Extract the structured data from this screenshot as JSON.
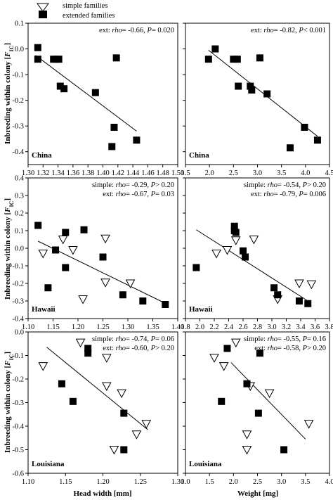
{
  "legend": {
    "simple_label": "simple families",
    "extended_label": "extended families"
  },
  "axis_labels": {
    "ylabel_prefix": "Inbreeding within colony [",
    "ylabel_F": "F",
    "ylabel_sub": "IC",
    "ylabel_suffix": "]",
    "xlabel_left": "Head width [mm]",
    "xlabel_right": "Weight [mg]"
  },
  "chart_data": [
    {
      "type": "scatter",
      "panel_label": "China",
      "xlim": [
        1.3,
        1.5
      ],
      "ylim": [
        -0.45,
        0.1
      ],
      "xticks": [
        "1.30",
        "1.32",
        "1.34",
        "1.36",
        "1.38",
        "1.40",
        "1.42",
        "1.44",
        "1.46",
        "1.48",
        "1.50"
      ],
      "yticks": [
        "0.1",
        "0.0",
        "-0.1",
        "-0.2",
        "-0.3",
        "-0.4"
      ],
      "ytick_values": [
        0.1,
        0.0,
        -0.1,
        -0.2,
        -0.3,
        -0.4
      ],
      "xtick_values": [
        1.3,
        1.32,
        1.34,
        1.36,
        1.38,
        1.4,
        1.42,
        1.44,
        1.46,
        1.48,
        1.5
      ],
      "annotations": [
        {
          "group": "ext:",
          "stat": "rho",
          "value": "= -0.66, ",
          "p": "P",
          "pval": "= 0.020"
        }
      ],
      "series": [
        {
          "name": "extended families",
          "marker": "square",
          "points": [
            [
              1.313,
              0.005
            ],
            [
              1.313,
              -0.04
            ],
            [
              1.334,
              -0.04
            ],
            [
              1.338,
              -0.04
            ],
            [
              1.341,
              -0.04
            ],
            [
              1.343,
              -0.145
            ],
            [
              1.348,
              -0.155
            ],
            [
              1.39,
              -0.17
            ],
            [
              1.415,
              -0.305
            ],
            [
              1.418,
              -0.035
            ],
            [
              1.412,
              -0.38
            ],
            [
              1.445,
              -0.355
            ]
          ]
        }
      ],
      "fit_lines": [
        {
          "from": [
            1.31,
            -0.025
          ],
          "to": [
            1.445,
            -0.32
          ]
        }
      ]
    },
    {
      "type": "scatter",
      "panel_label": "China",
      "xlim": [
        1.5,
        4.5
      ],
      "ylim": [
        -0.45,
        0.1
      ],
      "xticks": [
        "1.5",
        "2.0",
        "2.5",
        "3.0",
        "3.5",
        "4.0",
        "4.5"
      ],
      "xtick_values": [
        1.5,
        2.0,
        2.5,
        3.0,
        3.5,
        4.0,
        4.5
      ],
      "yticks": [],
      "ytick_values": [
        0.1,
        0.0,
        -0.1,
        -0.2,
        -0.3,
        -0.4
      ],
      "annotations": [
        {
          "group": "ext:",
          "stat": "rho",
          "value": "= -0.82, ",
          "p": "P",
          "pval": "< 0.001"
        }
      ],
      "series": [
        {
          "name": "extended families",
          "marker": "square",
          "points": [
            [
              1.98,
              -0.04
            ],
            [
              2.12,
              0.0
            ],
            [
              2.5,
              -0.04
            ],
            [
              2.58,
              -0.04
            ],
            [
              2.6,
              -0.145
            ],
            [
              2.85,
              -0.145
            ],
            [
              2.88,
              -0.16
            ],
            [
              3.05,
              -0.035
            ],
            [
              3.2,
              -0.175
            ],
            [
              3.68,
              -0.385
            ],
            [
              3.98,
              -0.305
            ],
            [
              4.25,
              -0.355
            ]
          ]
        }
      ],
      "fit_lines": [
        {
          "from": [
            1.98,
            -0.005
          ],
          "to": [
            4.25,
            -0.34
          ]
        }
      ]
    },
    {
      "type": "scatter",
      "panel_label": "Hawaii",
      "xlim": [
        1.1,
        1.4
      ],
      "ylim": [
        -0.4,
        0.4
      ],
      "xticks": [
        "1.10",
        "1.15",
        "1.20",
        "1.25",
        "1.30",
        "1.35",
        "1.40"
      ],
      "xtick_values": [
        1.1,
        1.15,
        1.2,
        1.25,
        1.3,
        1.35,
        1.4
      ],
      "yticks": [
        "0.4",
        "0.3",
        "0.2",
        "0.1",
        "0.0",
        "-0.1",
        "-0.2",
        "-0.3",
        "-0.4"
      ],
      "ytick_values": [
        0.4,
        0.3,
        0.2,
        0.1,
        0.0,
        -0.1,
        -0.2,
        -0.3,
        -0.4
      ],
      "annotations": [
        {
          "group": "simple:",
          "stat": "rho",
          "value": "= -0.29, ",
          "p": "P",
          "pval": "> 0.20"
        },
        {
          "group": "ext:",
          "stat": "rho",
          "value": "= -0.67, ",
          "p": "P",
          "pval": "= 0.03"
        }
      ],
      "series": [
        {
          "name": "simple families",
          "marker": "triangle-down",
          "points": [
            [
              1.13,
              -0.03
            ],
            [
              1.17,
              0.05
            ],
            [
              1.19,
              -0.01
            ],
            [
              1.21,
              -0.29
            ],
            [
              1.255,
              0.055
            ],
            [
              1.255,
              -0.195
            ],
            [
              1.305,
              -0.2
            ]
          ]
        },
        {
          "name": "extended families",
          "marker": "square",
          "points": [
            [
              1.12,
              0.13
            ],
            [
              1.14,
              -0.225
            ],
            [
              1.155,
              -0.01
            ],
            [
              1.175,
              0.09
            ],
            [
              1.175,
              -0.11
            ],
            [
              1.212,
              0.105
            ],
            [
              1.25,
              -0.05
            ],
            [
              1.29,
              -0.265
            ],
            [
              1.33,
              -0.3
            ],
            [
              1.375,
              -0.32
            ]
          ]
        }
      ],
      "fit_lines": [
        {
          "from": [
            1.12,
            0.04
          ],
          "to": [
            1.38,
            -0.32
          ]
        }
      ]
    },
    {
      "type": "scatter",
      "panel_label": "Hawaii",
      "xlim": [
        1.8,
        3.8
      ],
      "ylim": [
        -0.4,
        0.4
      ],
      "xticks": [
        "1.8",
        "2.0",
        "2.2",
        "2.4",
        "2.6",
        "2.8",
        "3.0",
        "3.2",
        "3.4",
        "3.6",
        "3.8"
      ],
      "xtick_values": [
        1.8,
        2.0,
        2.2,
        2.4,
        2.6,
        2.8,
        3.0,
        3.2,
        3.4,
        3.6,
        3.8
      ],
      "yticks": [],
      "ytick_values": [
        0.4,
        0.3,
        0.2,
        0.1,
        0.0,
        -0.1,
        -0.2,
        -0.3,
        -0.4
      ],
      "annotations": [
        {
          "group": "simple:",
          "stat": "rho",
          "value": "= -0.54, ",
          "p": "P",
          "pval": "> 0.20"
        },
        {
          "group": "ext:",
          "stat": "rho",
          "value": "= -0.79, ",
          "p": "P",
          "pval": "= 0.006"
        }
      ],
      "series": [
        {
          "name": "simple families",
          "marker": "triangle-down",
          "points": [
            [
              2.23,
              -0.03
            ],
            [
              2.38,
              -0.01
            ],
            [
              2.5,
              0.045
            ],
            [
              2.75,
              0.05
            ],
            [
              3.08,
              -0.29
            ],
            [
              3.38,
              -0.2
            ],
            [
              3.55,
              -0.205
            ]
          ]
        },
        {
          "name": "extended families",
          "marker": "square",
          "points": [
            [
              1.95,
              -0.11
            ],
            [
              2.48,
              0.125
            ],
            [
              2.48,
              0.1
            ],
            [
              2.5,
              0.09
            ],
            [
              2.6,
              -0.015
            ],
            [
              2.63,
              -0.05
            ],
            [
              3.03,
              -0.225
            ],
            [
              3.08,
              -0.265
            ],
            [
              3.38,
              -0.3
            ],
            [
              3.5,
              -0.315
            ]
          ]
        }
      ],
      "fit_lines": [
        {
          "from": [
            1.95,
            0.105
          ],
          "to": [
            3.52,
            -0.305
          ]
        }
      ]
    },
    {
      "type": "scatter",
      "panel_label": "Louisiana",
      "xlim": [
        1.1,
        1.3
      ],
      "ylim": [
        -0.6,
        0.0
      ],
      "xticks": [
        "1.10",
        "1.15",
        "1.20",
        "1.25",
        "1.30"
      ],
      "xtick_values": [
        1.1,
        1.15,
        1.2,
        1.25,
        1.3
      ],
      "yticks": [
        "0.0",
        "-0.1",
        "-0.2",
        "-0.3",
        "-0.4",
        "-0.5",
        "-0.6"
      ],
      "ytick_values": [
        0.0,
        -0.1,
        -0.2,
        -0.3,
        -0.4,
        -0.5,
        -0.6
      ],
      "annotations": [
        {
          "group": "simple:",
          "stat": "rho",
          "value": "= -0.74, ",
          "p": "P",
          "pval": "= 0.06"
        },
        {
          "group": "ext:",
          "stat": "rho",
          "value": "= -0.60, ",
          "p": "P",
          "pval": "> 0.20"
        }
      ],
      "series": [
        {
          "name": "simple families",
          "marker": "triangle-down",
          "points": [
            [
              1.12,
              -0.145
            ],
            [
              1.17,
              -0.045
            ],
            [
              1.205,
              -0.11
            ],
            [
              1.205,
              -0.23
            ],
            [
              1.225,
              -0.26
            ],
            [
              1.215,
              -0.5
            ],
            [
              1.245,
              -0.435
            ],
            [
              1.258,
              -0.39
            ]
          ]
        },
        {
          "name": "extended families",
          "marker": "square",
          "points": [
            [
              1.145,
              -0.22
            ],
            [
              1.16,
              -0.295
            ],
            [
              1.18,
              -0.07
            ],
            [
              1.18,
              -0.09
            ],
            [
              1.228,
              -0.345
            ],
            [
              1.228,
              -0.5
            ]
          ]
        }
      ],
      "fit_lines": [
        {
          "from": [
            1.125,
            -0.065
          ],
          "to": [
            1.26,
            -0.415
          ]
        }
      ]
    },
    {
      "type": "scatter",
      "panel_label": "Louisiana",
      "xlim": [
        1.0,
        4.0
      ],
      "ylim": [
        -0.6,
        0.0
      ],
      "xticks": [
        "1.0",
        "1.5",
        "2.0",
        "2.5",
        "3.0",
        "3.5",
        "4.0"
      ],
      "xtick_values": [
        1.0,
        1.5,
        2.0,
        2.5,
        3.0,
        3.5,
        4.0
      ],
      "yticks": [],
      "ytick_values": [
        0.0,
        -0.1,
        -0.2,
        -0.3,
        -0.4,
        -0.5,
        -0.6
      ],
      "annotations": [
        {
          "group": "simple:",
          "stat": "rho",
          "value": "= -0.55, ",
          "p": "P",
          "pval": "= 0.16"
        },
        {
          "group": "ext:",
          "stat": "rho",
          "value": "= -0.58, ",
          "p": "P",
          "pval": "> 0.20"
        }
      ],
      "series": [
        {
          "name": "simple families",
          "marker": "triangle-down",
          "points": [
            [
              1.6,
              -0.11
            ],
            [
              1.8,
              -0.145
            ],
            [
              2.05,
              -0.045
            ],
            [
              2.35,
              -0.23
            ],
            [
              2.28,
              -0.435
            ],
            [
              2.28,
              -0.5
            ],
            [
              2.75,
              -0.26
            ],
            [
              3.57,
              -0.39
            ]
          ]
        },
        {
          "name": "extended families",
          "marker": "square",
          "points": [
            [
              1.75,
              -0.295
            ],
            [
              1.87,
              -0.07
            ],
            [
              2.28,
              -0.22
            ],
            [
              2.55,
              -0.09
            ],
            [
              2.52,
              -0.345
            ],
            [
              3.05,
              -0.5
            ]
          ]
        }
      ],
      "fit_lines": [
        {
          "from": [
            1.95,
            -0.13
          ],
          "to": [
            3.5,
            -0.455
          ]
        }
      ]
    }
  ]
}
